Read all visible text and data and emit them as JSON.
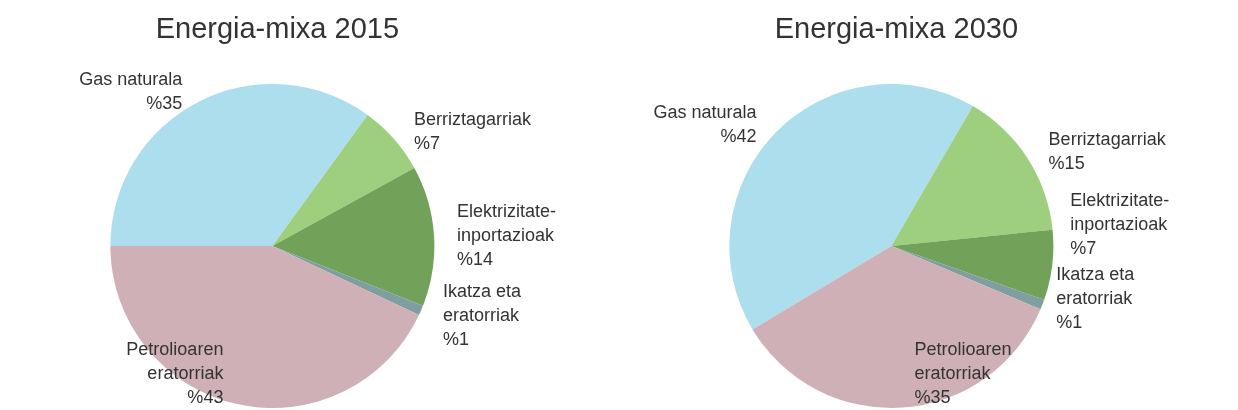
{
  "chart_data": [
    {
      "type": "pie",
      "title": "Energia-mixa 2015",
      "categories": [
        "Gas naturala",
        "Berriztagarriak",
        "Elektrizitate-inportazioak",
        "Ikatza eta eratorriak",
        "Petrolioaren eratorriak"
      ],
      "values": [
        35,
        7,
        14,
        1,
        43
      ],
      "value_labels": [
        "%35",
        "%7",
        "%14",
        "%1",
        "%43"
      ],
      "colors": [
        "#acdeee",
        "#9dcf7e",
        "#72a159",
        "#7f9ea0",
        "#cfb0b6"
      ]
    },
    {
      "type": "pie",
      "title": "Energia-mixa 2030",
      "categories": [
        "Gas naturala",
        "Berriztagarriak",
        "Elektrizitate-inportazioak",
        "Ikatza eta eratorriak",
        "Petrolioaren eratorriak"
      ],
      "values": [
        42,
        15,
        7,
        1,
        35
      ],
      "value_labels": [
        "%42",
        "%15",
        "%7",
        "%1",
        "%35"
      ],
      "colors": [
        "#acdeee",
        "#9dcf7e",
        "#72a159",
        "#7f9ea0",
        "#cfb0b6"
      ]
    }
  ]
}
